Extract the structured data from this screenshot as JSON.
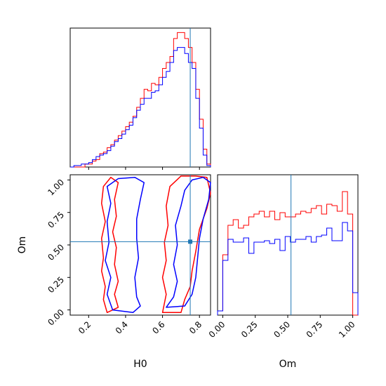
{
  "chart_data": {
    "type": "corner",
    "truth": {
      "H0": 0.75,
      "Om": 0.525
    },
    "truth_color": "#1f77b4",
    "series": [
      {
        "color": "#ff0000"
      },
      {
        "color": "#0000ff"
      }
    ],
    "axes": {
      "H0": {
        "label": "H0",
        "range": [
          0.1,
          0.86
        ],
        "ticks": [
          0.2,
          0.4,
          0.6,
          0.8
        ],
        "tick_labels": [
          "0.2",
          "0.4",
          "0.6",
          "0.8"
        ]
      },
      "Om": {
        "label": "Om",
        "range": [
          -0.04,
          1.04
        ],
        "ticks": [
          0.0,
          0.25,
          0.5,
          0.75,
          1.0
        ],
        "tick_labels": [
          "0.00",
          "0.25",
          "0.50",
          "0.75",
          "1.00"
        ]
      }
    },
    "hist_H0": {
      "edges": [
        0.1,
        0.12,
        0.14,
        0.16,
        0.18,
        0.2,
        0.22,
        0.24,
        0.26,
        0.28,
        0.3,
        0.32,
        0.34,
        0.36,
        0.38,
        0.4,
        0.42,
        0.44,
        0.46,
        0.48,
        0.5,
        0.52,
        0.54,
        0.56,
        0.58,
        0.6,
        0.62,
        0.64,
        0.66,
        0.68,
        0.7,
        0.72,
        0.74,
        0.76,
        0.78,
        0.8,
        0.82,
        0.84,
        0.86
      ],
      "red": [
        0,
        0,
        0,
        0,
        0.02,
        0.02,
        0.04,
        0.05,
        0.09,
        0.1,
        0.13,
        0.15,
        0.18,
        0.21,
        0.24,
        0.27,
        0.3,
        0.34,
        0.4,
        0.46,
        0.52,
        0.51,
        0.56,
        0.55,
        0.6,
        0.66,
        0.7,
        0.74,
        0.86,
        0.9,
        0.9,
        0.86,
        0.8,
        0.7,
        0.52,
        0.32,
        0.12,
        0.02
      ],
      "blue": [
        0,
        0.01,
        0.01,
        0.02,
        0.02,
        0.03,
        0.05,
        0.07,
        0.08,
        0.09,
        0.11,
        0.14,
        0.17,
        0.19,
        0.22,
        0.25,
        0.28,
        0.33,
        0.38,
        0.42,
        0.46,
        0.46,
        0.5,
        0.51,
        0.55,
        0.6,
        0.64,
        0.7,
        0.78,
        0.8,
        0.8,
        0.76,
        0.7,
        0.66,
        0.46,
        0.26,
        0.08,
        0.01
      ]
    },
    "hist_Om": {
      "edges": [
        -0.04,
        0,
        0.04,
        0.08,
        0.12,
        0.16,
        0.2,
        0.24,
        0.28,
        0.32,
        0.36,
        0.4,
        0.44,
        0.48,
        0.52,
        0.56,
        0.6,
        0.64,
        0.68,
        0.72,
        0.76,
        0.8,
        0.84,
        0.88,
        0.92,
        0.96,
        1.0,
        1.04
      ],
      "red": [
        0.03,
        0.43,
        0.64,
        0.68,
        0.62,
        0.64,
        0.7,
        0.72,
        0.74,
        0.7,
        0.74,
        0.68,
        0.73,
        0.7,
        0.7,
        0.72,
        0.74,
        0.73,
        0.76,
        0.78,
        0.72,
        0.79,
        0.78,
        0.74,
        0.88,
        0.72,
        0.0
      ],
      "blue": [
        0.03,
        0.39,
        0.54,
        0.52,
        0.52,
        0.55,
        0.44,
        0.52,
        0.52,
        0.53,
        0.51,
        0.54,
        0.46,
        0.56,
        0.52,
        0.54,
        0.54,
        0.56,
        0.52,
        0.56,
        0.57,
        0.62,
        0.53,
        0.53,
        0.66,
        0.6,
        0.16
      ]
    },
    "contours": {
      "red": [
        [
          [
            0.3,
            -0.02
          ],
          [
            0.28,
            0.08
          ],
          [
            0.29,
            0.18
          ],
          [
            0.27,
            0.3
          ],
          [
            0.28,
            0.4
          ],
          [
            0.27,
            0.55
          ],
          [
            0.29,
            0.68
          ],
          [
            0.27,
            0.82
          ],
          [
            0.28,
            0.95
          ],
          [
            0.32,
            1.02
          ],
          [
            0.36,
            0.98
          ],
          [
            0.34,
            0.85
          ],
          [
            0.35,
            0.72
          ],
          [
            0.33,
            0.6
          ],
          [
            0.35,
            0.48
          ],
          [
            0.34,
            0.35
          ],
          [
            0.36,
            0.22
          ],
          [
            0.34,
            0.12
          ],
          [
            0.36,
            0.02
          ],
          [
            0.3,
            -0.02
          ]
        ],
        [
          [
            0.6,
            -0.02
          ],
          [
            0.62,
            0.12
          ],
          [
            0.6,
            0.25
          ],
          [
            0.62,
            0.38
          ],
          [
            0.61,
            0.52
          ],
          [
            0.63,
            0.65
          ],
          [
            0.62,
            0.8
          ],
          [
            0.64,
            0.95
          ],
          [
            0.7,
            1.03
          ],
          [
            0.78,
            1.03
          ],
          [
            0.84,
            1.02
          ],
          [
            0.86,
            0.9
          ],
          [
            0.84,
            0.78
          ],
          [
            0.8,
            0.62
          ],
          [
            0.78,
            0.45
          ],
          [
            0.76,
            0.3
          ],
          [
            0.75,
            0.18
          ],
          [
            0.72,
            0.08
          ],
          [
            0.7,
            -0.02
          ],
          [
            0.6,
            -0.02
          ]
        ]
      ],
      "blue": [
        [
          [
            0.33,
            0.0
          ],
          [
            0.3,
            0.12
          ],
          [
            0.32,
            0.25
          ],
          [
            0.29,
            0.38
          ],
          [
            0.31,
            0.52
          ],
          [
            0.3,
            0.68
          ],
          [
            0.32,
            0.82
          ],
          [
            0.3,
            0.95
          ],
          [
            0.36,
            1.01
          ],
          [
            0.45,
            1.02
          ],
          [
            0.5,
            0.98
          ],
          [
            0.48,
            0.85
          ],
          [
            0.46,
            0.7
          ],
          [
            0.46,
            0.55
          ],
          [
            0.47,
            0.4
          ],
          [
            0.45,
            0.25
          ],
          [
            0.46,
            0.1
          ],
          [
            0.48,
            0.03
          ],
          [
            0.44,
            -0.02
          ],
          [
            0.33,
            0.0
          ]
        ],
        [
          [
            0.62,
            0.02
          ],
          [
            0.66,
            0.1
          ],
          [
            0.68,
            0.22
          ],
          [
            0.66,
            0.35
          ],
          [
            0.68,
            0.5
          ],
          [
            0.67,
            0.65
          ],
          [
            0.7,
            0.8
          ],
          [
            0.72,
            0.92
          ],
          [
            0.76,
            1.0
          ],
          [
            0.82,
            1.02
          ],
          [
            0.86,
            0.98
          ],
          [
            0.85,
            0.85
          ],
          [
            0.82,
            0.7
          ],
          [
            0.8,
            0.55
          ],
          [
            0.79,
            0.4
          ],
          [
            0.78,
            0.25
          ],
          [
            0.76,
            0.12
          ],
          [
            0.72,
            0.03
          ],
          [
            0.62,
            0.02
          ]
        ]
      ]
    }
  }
}
